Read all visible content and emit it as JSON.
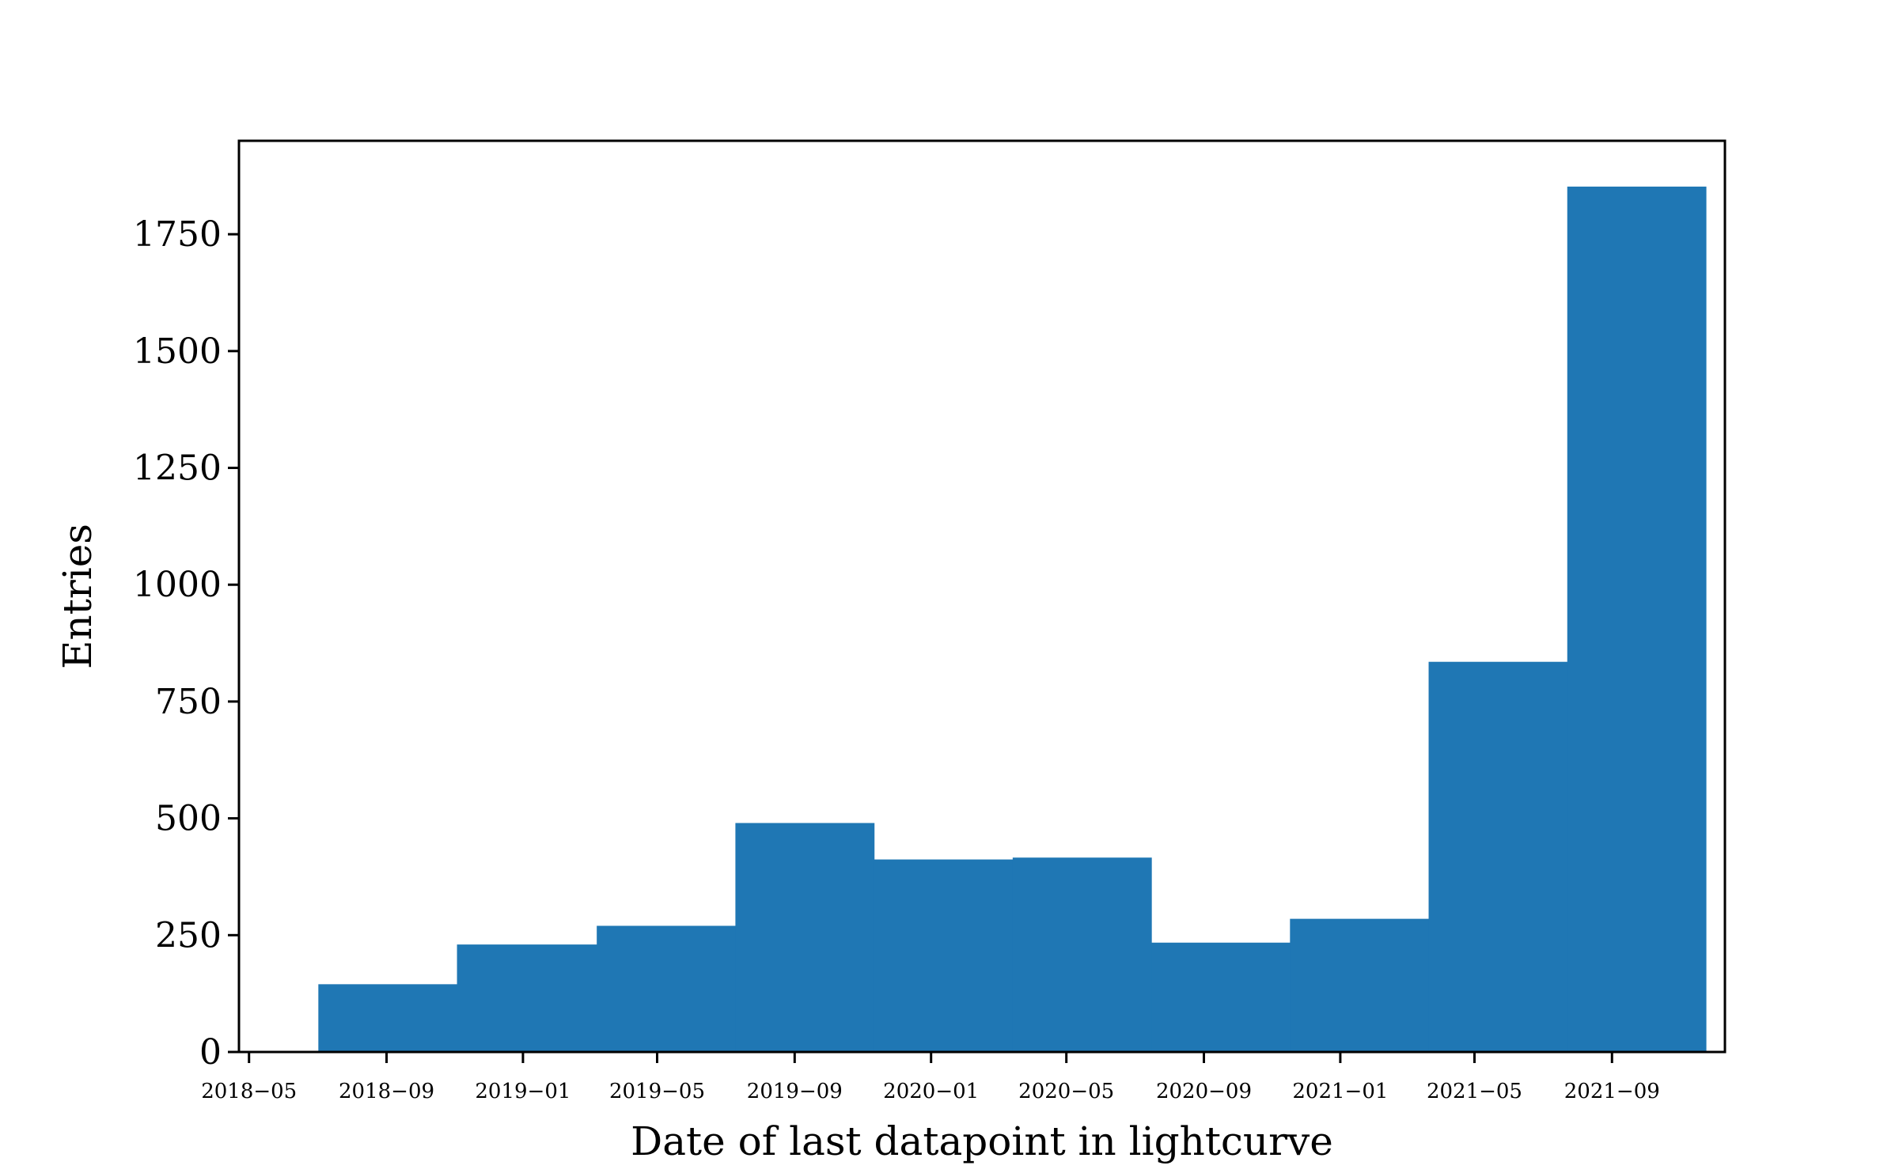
{
  "chart_data": {
    "type": "bar",
    "title": "",
    "xlabel": "Date of last datapoint in lightcurve",
    "ylabel": "Entries",
    "grid": false,
    "legend": "none",
    "bar_color": "#1f77b4",
    "x_scale": "date",
    "xlim": [
      "2018-04-22",
      "2021-12-11"
    ],
    "ylim": [
      0,
      1950
    ],
    "x_ticks": [
      "2018-05-01",
      "2018-09-01",
      "2019-01-01",
      "2019-05-01",
      "2019-09-01",
      "2020-01-01",
      "2020-05-01",
      "2020-09-01",
      "2021-01-01",
      "2021-05-01",
      "2021-09-01"
    ],
    "x_tick_labels": [
      "2018−05",
      "2018−09",
      "2019−01",
      "2019−05",
      "2019−09",
      "2020−01",
      "2020−05",
      "2020−09",
      "2021−01",
      "2021−05",
      "2021−09"
    ],
    "y_ticks": [
      0,
      250,
      500,
      750,
      1000,
      1250,
      1500,
      1750
    ],
    "y_tick_labels": [
      "0",
      "250",
      "500",
      "750",
      "1000",
      "1250",
      "1500",
      "1750"
    ],
    "bin_edges": [
      "2018-07-02",
      "2018-11-03",
      "2019-03-08",
      "2019-07-10",
      "2019-11-11",
      "2020-03-14",
      "2020-07-16",
      "2020-11-17",
      "2021-03-21",
      "2021-07-23",
      "2021-11-24"
    ],
    "values": [
      145,
      230,
      270,
      490,
      412,
      416,
      234,
      285,
      835,
      1852
    ]
  }
}
